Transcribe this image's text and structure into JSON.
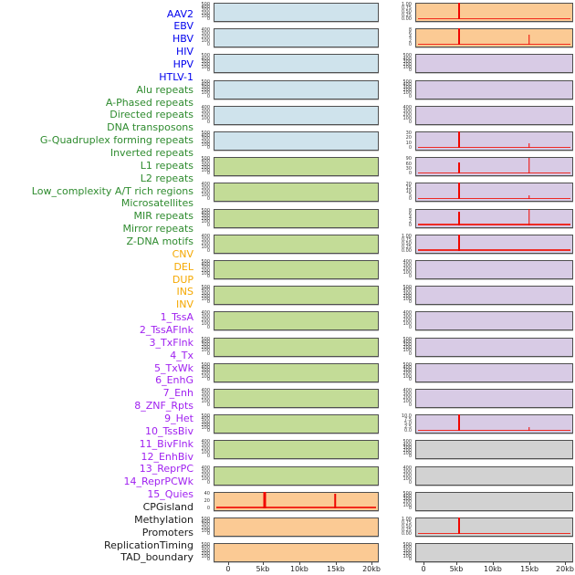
{
  "figure": {
    "group_colors": {
      "virus": "#cfe3ec",
      "repeat": "#c3dc97",
      "sv": "#fbca94",
      "chromatin": "#d8cbe5",
      "other": "#d2d2d2"
    },
    "label_colors": {
      "virus": "#0000ee",
      "repeat": "#2e8b2e",
      "sv": "#f5a800",
      "chromatin": "#a021f0",
      "other": "#1a1a1a"
    },
    "line_color": "#ff0000"
  },
  "chart_data": {
    "type": "line",
    "layout": "small-multiples: 44 panels in 2 columns of 22 rows, column-major order; one shared x-axis per column at bottom; legend off; grid off",
    "x_tick_labels": [
      "0",
      "5kb",
      "10kb",
      "15kb",
      "20kb"
    ],
    "x_range_kb": [
      0,
      20
    ],
    "panels": [
      {
        "name": "AAV2",
        "group": "virus",
        "yticks": [
          "500",
          "400",
          "300",
          "200",
          "100",
          "0"
        ],
        "spikes": [],
        "baseline": false
      },
      {
        "name": "EBV",
        "group": "virus",
        "yticks": [
          "400",
          "300",
          "200",
          "100",
          "0"
        ],
        "spikes": [],
        "baseline": false
      },
      {
        "name": "HBV",
        "group": "virus",
        "yticks": [
          "500",
          "400",
          "300",
          "200",
          "100",
          "0"
        ],
        "spikes": [],
        "baseline": false
      },
      {
        "name": "HIV",
        "group": "virus",
        "yticks": [
          "500",
          "400",
          "300",
          "200",
          "100",
          "0"
        ],
        "spikes": [],
        "baseline": false
      },
      {
        "name": "HPV",
        "group": "virus",
        "yticks": [
          "400",
          "300",
          "200",
          "100",
          "0"
        ],
        "spikes": [],
        "baseline": false
      },
      {
        "name": "HTLV-1",
        "group": "virus",
        "yticks": [
          "500",
          "400",
          "300",
          "200",
          "100",
          "0"
        ],
        "spikes": [],
        "baseline": false
      },
      {
        "name": "Alu repeats",
        "group": "repeat",
        "yticks": [
          "500",
          "400",
          "300",
          "200",
          "100",
          "0"
        ],
        "spikes": [],
        "baseline": false
      },
      {
        "name": "A-Phased repeats",
        "group": "repeat",
        "yticks": [
          "400",
          "300",
          "200",
          "100",
          "0"
        ],
        "spikes": [],
        "baseline": false
      },
      {
        "name": "Directed repeats",
        "group": "repeat",
        "yticks": [
          "500",
          "400",
          "300",
          "200",
          "100",
          "0"
        ],
        "spikes": [],
        "baseline": false
      },
      {
        "name": "DNA transposons",
        "group": "repeat",
        "yticks": [
          "400",
          "300",
          "200",
          "100",
          "0"
        ],
        "spikes": [],
        "baseline": false
      },
      {
        "name": "G-Quadruplex forming repeats",
        "group": "repeat",
        "yticks": [
          "500",
          "400",
          "300",
          "200",
          "100",
          "0"
        ],
        "spikes": [],
        "baseline": false
      },
      {
        "name": "Inverted repeats",
        "group": "repeat",
        "yticks": [
          "500",
          "400",
          "300",
          "200",
          "100",
          "0"
        ],
        "spikes": [],
        "baseline": false
      },
      {
        "name": "L1 repeats",
        "group": "repeat",
        "yticks": [
          "400",
          "300",
          "200",
          "100",
          "0"
        ],
        "spikes": [],
        "baseline": false
      },
      {
        "name": "L2 repeats",
        "group": "repeat",
        "yticks": [
          "500",
          "400",
          "300",
          "200",
          "100",
          "0"
        ],
        "spikes": [],
        "baseline": false
      },
      {
        "name": "Low_complexity A/T rich regions",
        "group": "repeat",
        "yticks": [
          "500",
          "400",
          "300",
          "200",
          "100",
          "0"
        ],
        "spikes": [],
        "baseline": false
      },
      {
        "name": "Microsatellites",
        "group": "repeat",
        "yticks": [
          "400",
          "300",
          "200",
          "100",
          "0"
        ],
        "spikes": [],
        "baseline": false
      },
      {
        "name": "MIR repeats",
        "group": "repeat",
        "yticks": [
          "500",
          "400",
          "300",
          "200",
          "100",
          "0"
        ],
        "spikes": [],
        "baseline": false
      },
      {
        "name": "Mirror repeats",
        "group": "repeat",
        "yticks": [
          "400",
          "300",
          "200",
          "100",
          "0"
        ],
        "spikes": [],
        "baseline": false
      },
      {
        "name": "Z-DNA motifs",
        "group": "repeat",
        "yticks": [
          "400",
          "300",
          "200",
          "100",
          "0"
        ],
        "spikes": [],
        "baseline": false
      },
      {
        "name": "CNV",
        "group": "sv",
        "yticks": [
          "40",
          "20",
          "0"
        ],
        "spikes": [
          {
            "kb": 5,
            "frac": 1.0,
            "w": 3
          },
          {
            "kb": 15,
            "frac": 0.92,
            "w": 1.5
          }
        ],
        "baseline": true
      },
      {
        "name": "DEL",
        "group": "sv",
        "yticks": [
          "500",
          "400",
          "300",
          "200",
          "100",
          "0"
        ],
        "spikes": [],
        "baseline": false
      },
      {
        "name": "DUP",
        "group": "sv",
        "yticks": [
          "500",
          "400",
          "300",
          "200",
          "100",
          "0"
        ],
        "spikes": [],
        "baseline": false
      },
      {
        "name": "INS",
        "group": "sv",
        "yticks": [
          "1.00",
          "0.75",
          "0.50",
          "0.25",
          "0.00"
        ],
        "spikes": [
          {
            "kb": 5,
            "frac": 1.0,
            "w": 2
          }
        ],
        "baseline": true
      },
      {
        "name": "INV",
        "group": "sv",
        "yticks": [
          "8",
          "6",
          "4",
          "2",
          "0"
        ],
        "spikes": [
          {
            "kb": 5,
            "frac": 1.0,
            "w": 2
          },
          {
            "kb": 15,
            "frac": 0.62,
            "w": 1.5
          }
        ],
        "baseline": true
      },
      {
        "name": "1_TssA",
        "group": "chromatin",
        "yticks": [
          "500",
          "400",
          "300",
          "200",
          "100",
          "0"
        ],
        "spikes": [],
        "baseline": false
      },
      {
        "name": "2_TssAFlnk",
        "group": "chromatin",
        "yticks": [
          "500",
          "400",
          "300",
          "200",
          "100",
          "0"
        ],
        "spikes": [],
        "baseline": false
      },
      {
        "name": "3_TxFlnk",
        "group": "chromatin",
        "yticks": [
          "400",
          "300",
          "200",
          "100",
          "0"
        ],
        "spikes": [],
        "baseline": false
      },
      {
        "name": "4_Tx",
        "group": "chromatin",
        "yticks": [
          "30",
          "20",
          "10",
          "0"
        ],
        "spikes": [
          {
            "kb": 5,
            "frac": 1.0,
            "w": 2
          },
          {
            "kb": 15,
            "frac": 0.28,
            "w": 1.5
          }
        ],
        "baseline": true
      },
      {
        "name": "5_TxWk",
        "group": "chromatin",
        "yticks": [
          "90",
          "60",
          "30",
          "0"
        ],
        "spikes": [
          {
            "kb": 5,
            "frac": 0.66,
            "w": 2
          },
          {
            "kb": 15,
            "frac": 0.97,
            "w": 1.5
          }
        ],
        "baseline": true
      },
      {
        "name": "6_EnhG",
        "group": "chromatin",
        "yticks": [
          "20",
          "15",
          "10",
          "5",
          "0"
        ],
        "spikes": [
          {
            "kb": 5,
            "frac": 1.0,
            "w": 2
          },
          {
            "kb": 15,
            "frac": 0.22,
            "w": 1.5
          }
        ],
        "baseline": true
      },
      {
        "name": "7_Enh",
        "group": "chromatin",
        "yticks": [
          "8",
          "6",
          "4",
          "2",
          "0"
        ],
        "spikes": [
          {
            "kb": 5,
            "frac": 0.85,
            "w": 2
          },
          {
            "kb": 15,
            "frac": 1.0,
            "w": 1.5
          }
        ],
        "baseline": true
      },
      {
        "name": "8_ZNF_Rpts",
        "group": "chromatin",
        "yticks": [
          "1.00",
          "0.75",
          "0.50",
          "0.25",
          "0.00"
        ],
        "spikes": [
          {
            "kb": 5,
            "frac": 1.0,
            "w": 2
          }
        ],
        "baseline": true
      },
      {
        "name": "9_Het",
        "group": "chromatin",
        "yticks": [
          "400",
          "300",
          "200",
          "100",
          "0"
        ],
        "spikes": [],
        "baseline": false
      },
      {
        "name": "10_TssBiv",
        "group": "chromatin",
        "yticks": [
          "500",
          "400",
          "300",
          "200",
          "100",
          "0"
        ],
        "spikes": [],
        "baseline": false
      },
      {
        "name": "11_BivFlnk",
        "group": "chromatin",
        "yticks": [
          "400",
          "300",
          "200",
          "100",
          "0"
        ],
        "spikes": [],
        "baseline": false
      },
      {
        "name": "12_EnhBiv",
        "group": "chromatin",
        "yticks": [
          "500",
          "400",
          "300",
          "200",
          "100",
          "0"
        ],
        "spikes": [],
        "baseline": false
      },
      {
        "name": "13_ReprPC",
        "group": "chromatin",
        "yticks": [
          "500",
          "400",
          "300",
          "200",
          "100",
          "0"
        ],
        "spikes": [],
        "baseline": false
      },
      {
        "name": "14_ReprPCWk",
        "group": "chromatin",
        "yticks": [
          "400",
          "300",
          "200",
          "100",
          "0"
        ],
        "spikes": [],
        "baseline": false
      },
      {
        "name": "15_Quies",
        "group": "chromatin",
        "yticks": [
          "10.0",
          "7.5",
          "5.0",
          "2.5",
          "0.0"
        ],
        "spikes": [
          {
            "kb": 5,
            "frac": 1.0,
            "w": 2
          },
          {
            "kb": 15,
            "frac": 0.2,
            "w": 1.5
          }
        ],
        "baseline": true
      },
      {
        "name": "CPGisland",
        "group": "other",
        "yticks": [
          "500",
          "400",
          "300",
          "200",
          "100",
          "0"
        ],
        "spikes": [],
        "baseline": false
      },
      {
        "name": "Methylation",
        "group": "other",
        "yticks": [
          "400",
          "300",
          "200",
          "100",
          "0"
        ],
        "spikes": [],
        "baseline": false
      },
      {
        "name": "Promoters",
        "group": "other",
        "yticks": [
          "500",
          "400",
          "300",
          "200",
          "100",
          "0"
        ],
        "spikes": [],
        "baseline": false
      },
      {
        "name": "ReplicationTiming",
        "group": "other",
        "yticks": [
          "1.00",
          "0.75",
          "0.50",
          "0.25",
          "0.00"
        ],
        "spikes": [
          {
            "kb": 5,
            "frac": 1.0,
            "w": 2
          }
        ],
        "baseline": true
      },
      {
        "name": "TAD_boundary",
        "group": "other",
        "yticks": [
          "500",
          "400",
          "300",
          "200",
          "100",
          "0"
        ],
        "spikes": [],
        "baseline": false
      }
    ]
  }
}
